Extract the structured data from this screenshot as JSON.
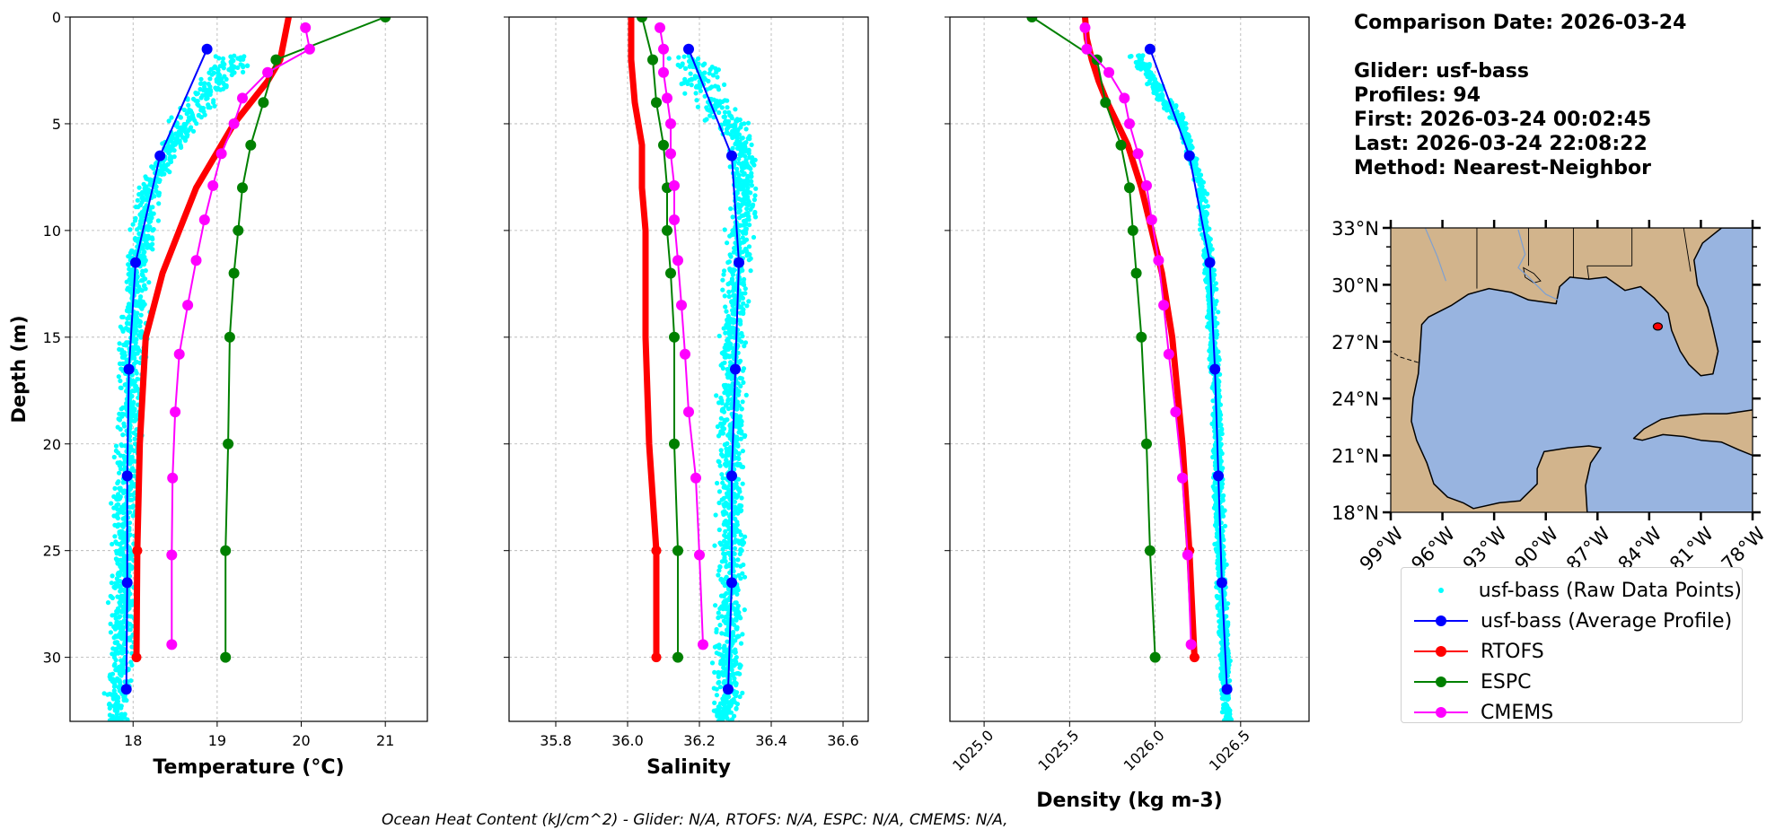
{
  "info": {
    "comparison_date": "Comparison Date: 2026-03-24",
    "glider": "Glider: usf-bass",
    "profiles": "Profiles: 94",
    "first": "First: 2026-03-24 00:02:45",
    "last": "Last: 2026-03-24 22:08:22",
    "method": "Method: Nearest-Neighbor"
  },
  "legend": [
    {
      "label": "usf-bass (Raw Data Points)",
      "color": "#00ffff",
      "style": "dot"
    },
    {
      "label": "usf-bass (Average Profile)",
      "color": "#0000ff",
      "style": "line-marker"
    },
    {
      "label": "RTOFS",
      "color": "#ff0000",
      "style": "line-marker"
    },
    {
      "label": "ESPC",
      "color": "#008000",
      "style": "line-marker"
    },
    {
      "label": "CMEMS",
      "color": "#ff00ff",
      "style": "line-marker"
    }
  ],
  "footer": "Ocean Heat Content (kJ/cm^2) - Glider: N/A,  RTOFS: N/A,  ESPC: N/A,  CMEMS: N/A,",
  "map": {
    "lat_ticks": [
      "33°N",
      "30°N",
      "27°N",
      "24°N",
      "21°N",
      "18°N"
    ],
    "lon_ticks": [
      "99°W",
      "96°W",
      "93°W",
      "90°W",
      "87°W",
      "84°W",
      "81°W",
      "78°W"
    ],
    "land_color": "#d2b48c",
    "water_color": "#98b4e0",
    "glider_marker": {
      "lat": 27.8,
      "lon": -83.5,
      "color": "#ff0000"
    }
  },
  "chart_data": [
    {
      "type": "line",
      "xlabel": "Temperature (°C)",
      "ylabel": "Depth (m)",
      "xlim": [
        17.25,
        21.5
      ],
      "ylim": [
        33,
        0
      ],
      "xticks": [
        "18",
        "19",
        "20",
        "21"
      ],
      "yticks": [
        "0",
        "5",
        "10",
        "15",
        "20",
        "25",
        "30"
      ],
      "raw_points": {
        "name": "usf-bass (Raw Data Points)",
        "center": [
          [
            2,
            19.2
          ],
          [
            5,
            18.6
          ],
          [
            8,
            18.2
          ],
          [
            12,
            18.05
          ],
          [
            18,
            17.95
          ],
          [
            25,
            17.9
          ],
          [
            31,
            17.85
          ],
          [
            33,
            17.8
          ]
        ],
        "spread": 0.2
      },
      "series": [
        {
          "name": "usf-bass (Average Profile)",
          "color": "#0000ff",
          "depth": [
            1.5,
            6.5,
            11.5,
            16.5,
            21.5,
            26.5,
            31.5
          ],
          "values": [
            18.88,
            18.32,
            18.03,
            17.95,
            17.93,
            17.93,
            17.92
          ]
        },
        {
          "name": "RTOFS",
          "color": "#ff0000",
          "depth": [
            0,
            1,
            2,
            3,
            4,
            5,
            6,
            8,
            10,
            12,
            15,
            20,
            25,
            30
          ],
          "values": [
            19.85,
            19.8,
            19.75,
            19.6,
            19.4,
            19.2,
            19.05,
            18.75,
            18.55,
            18.35,
            18.15,
            18.08,
            18.05,
            18.04
          ]
        },
        {
          "name": "ESPC",
          "color": "#008000",
          "depth": [
            0,
            2,
            4,
            6,
            8,
            10,
            12,
            15,
            20,
            25,
            30
          ],
          "values": [
            21.0,
            19.7,
            19.55,
            19.4,
            19.3,
            19.25,
            19.2,
            19.15,
            19.13,
            19.1,
            19.1
          ]
        },
        {
          "name": "CMEMS",
          "color": "#ff00ff",
          "depth": [
            0.5,
            1.5,
            2.6,
            3.8,
            5.0,
            6.4,
            7.9,
            9.5,
            11.4,
            13.5,
            15.8,
            18.5,
            21.6,
            25.2,
            29.4
          ],
          "values": [
            20.05,
            20.1,
            19.6,
            19.3,
            19.2,
            19.05,
            18.95,
            18.85,
            18.75,
            18.65,
            18.55,
            18.5,
            18.47,
            18.46,
            18.46
          ]
        }
      ]
    },
    {
      "type": "line",
      "xlabel": "Salinity",
      "xlim": [
        35.67,
        36.67
      ],
      "ylim": [
        33,
        0
      ],
      "xticks": [
        "35.8",
        "36.0",
        "36.2",
        "36.4",
        "36.6"
      ],
      "raw_points": {
        "name": "usf-bass (Raw Data Points)",
        "center": [
          [
            2,
            36.17
          ],
          [
            4,
            36.24
          ],
          [
            6,
            36.32
          ],
          [
            9,
            36.32
          ],
          [
            12,
            36.3
          ],
          [
            18,
            36.29
          ],
          [
            25,
            36.29
          ],
          [
            31,
            36.28
          ],
          [
            33,
            36.27
          ]
        ],
        "spread": 0.05
      },
      "series": [
        {
          "name": "usf-bass (Average Profile)",
          "color": "#0000ff",
          "depth": [
            1.5,
            6.5,
            11.5,
            16.5,
            21.5,
            26.5,
            31.5
          ],
          "values": [
            36.17,
            36.29,
            36.31,
            36.3,
            36.29,
            36.29,
            36.28
          ]
        },
        {
          "name": "RTOFS",
          "color": "#ff0000",
          "depth": [
            0,
            2,
            4,
            6,
            8,
            10,
            12,
            15,
            20,
            25,
            30
          ],
          "values": [
            36.01,
            36.01,
            36.02,
            36.04,
            36.04,
            36.05,
            36.05,
            36.05,
            36.06,
            36.08,
            36.08
          ]
        },
        {
          "name": "ESPC",
          "color": "#008000",
          "depth": [
            0,
            2,
            4,
            6,
            8,
            10,
            12,
            15,
            20,
            25,
            30
          ],
          "values": [
            36.04,
            36.07,
            36.08,
            36.1,
            36.11,
            36.11,
            36.12,
            36.13,
            36.13,
            36.14,
            36.14
          ]
        },
        {
          "name": "CMEMS",
          "color": "#ff00ff",
          "depth": [
            0.5,
            1.5,
            2.6,
            3.8,
            5.0,
            6.4,
            7.9,
            9.5,
            11.4,
            13.5,
            15.8,
            18.5,
            21.6,
            25.2,
            29.4
          ],
          "values": [
            36.09,
            36.1,
            36.1,
            36.11,
            36.12,
            36.12,
            36.13,
            36.13,
            36.14,
            36.15,
            36.16,
            36.17,
            36.19,
            36.2,
            36.21
          ]
        }
      ]
    },
    {
      "type": "line",
      "xlabel": "Density (kg m-3)",
      "xlim": [
        1024.8,
        1026.9
      ],
      "ylim": [
        33,
        0
      ],
      "xticks": [
        "1025.0",
        "1025.5",
        "1026.0",
        "1026.5"
      ],
      "raw_points": {
        "name": "usf-bass (Raw Data Points)",
        "center": [
          [
            2,
            1025.9
          ],
          [
            5,
            1026.15
          ],
          [
            8,
            1026.27
          ],
          [
            12,
            1026.32
          ],
          [
            18,
            1026.36
          ],
          [
            25,
            1026.38
          ],
          [
            31,
            1026.41
          ],
          [
            33,
            1026.42
          ]
        ],
        "spread": 0.04
      },
      "series": [
        {
          "name": "usf-bass (Average Profile)",
          "color": "#0000ff",
          "depth": [
            1.5,
            6.5,
            11.5,
            16.5,
            21.5,
            26.5,
            31.5
          ],
          "values": [
            1025.97,
            1026.2,
            1026.32,
            1026.35,
            1026.37,
            1026.39,
            1026.42
          ]
        },
        {
          "name": "RTOFS",
          "color": "#ff0000",
          "depth": [
            0,
            1,
            2,
            3,
            4,
            5,
            6,
            8,
            10,
            12,
            15,
            20,
            25,
            30
          ],
          "values": [
            1025.59,
            1025.6,
            1025.63,
            1025.67,
            1025.72,
            1025.78,
            1025.84,
            1025.92,
            1025.98,
            1026.04,
            1026.1,
            1026.16,
            1026.2,
            1026.23
          ]
        },
        {
          "name": "ESPC",
          "color": "#008000",
          "depth": [
            0,
            2,
            4,
            6,
            8,
            10,
            12,
            15,
            20,
            25,
            30
          ],
          "values": [
            1025.28,
            1025.66,
            1025.71,
            1025.8,
            1025.85,
            1025.87,
            1025.89,
            1025.92,
            1025.95,
            1025.97,
            1026.0
          ]
        },
        {
          "name": "CMEMS",
          "color": "#ff00ff",
          "depth": [
            0.5,
            1.5,
            2.6,
            3.8,
            5.0,
            6.4,
            7.9,
            9.5,
            11.4,
            13.5,
            15.8,
            18.5,
            21.6,
            25.2,
            29.4
          ],
          "values": [
            1025.59,
            1025.6,
            1025.73,
            1025.82,
            1025.85,
            1025.9,
            1025.95,
            1025.98,
            1026.02,
            1026.05,
            1026.08,
            1026.12,
            1026.16,
            1026.19,
            1026.21
          ]
        }
      ]
    }
  ]
}
